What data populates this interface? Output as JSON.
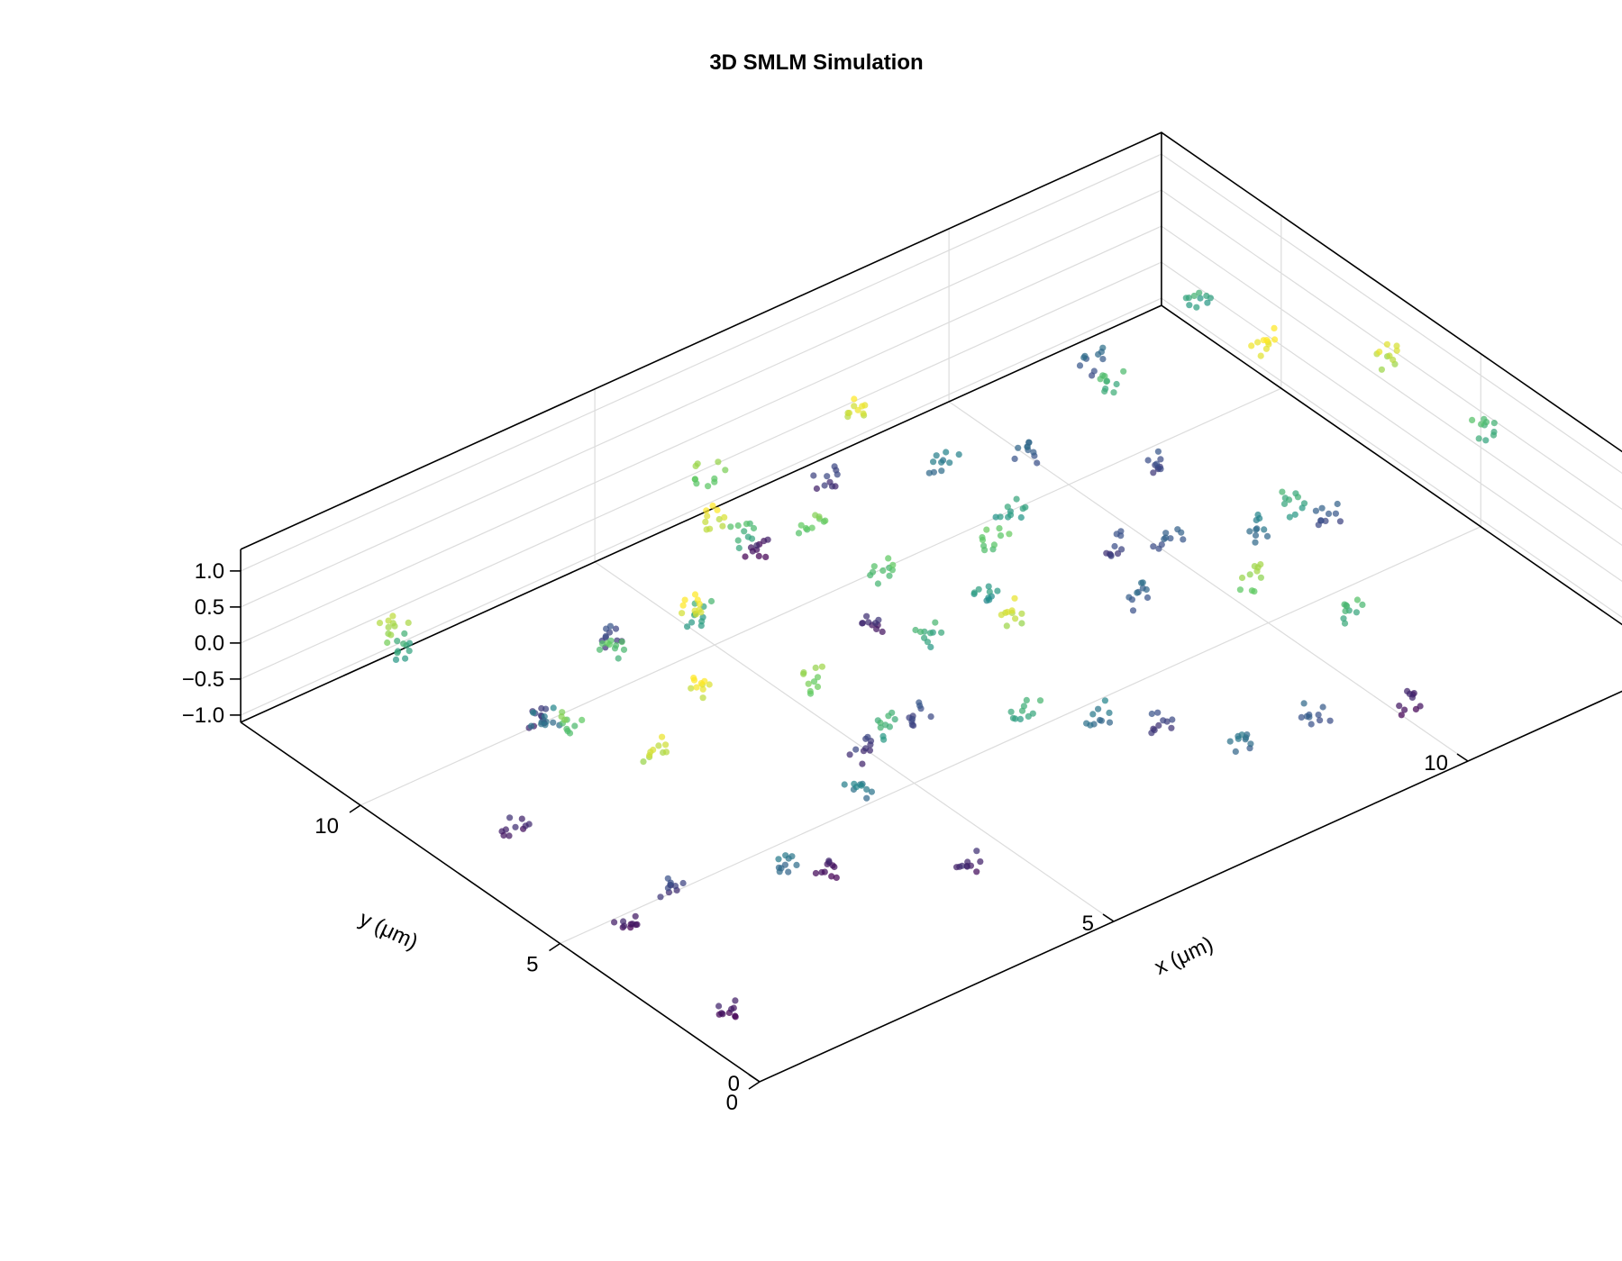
{
  "chart_data": {
    "type": "scatter",
    "title": "3D SMLM Simulation",
    "xlabel": "x (μm)",
    "ylabel": "y (μm)",
    "zlabel": "",
    "xlim": [
      0,
      13
    ],
    "ylim": [
      0,
      13
    ],
    "zlim": [
      -1.1,
      1.3
    ],
    "x_ticks": [
      0,
      5,
      10
    ],
    "y_ticks": [
      0,
      5,
      10
    ],
    "z_ticks": [
      -1.0,
      -0.5,
      0.0,
      0.5,
      1.0
    ],
    "x_tick_labels": [
      "0",
      "5",
      "10"
    ],
    "y_tick_labels": [
      "0",
      "5",
      "10"
    ],
    "z_tick_labels": [
      "−1.0",
      "−0.5",
      "0.0",
      "0.5",
      "1.0"
    ],
    "grid": true,
    "legend": "none",
    "colormap": [
      "#440154",
      "#3b528b",
      "#21918c",
      "#5ec962",
      "#fde725"
    ],
    "color_by": "z",
    "cluster_points_per_cluster": 10,
    "clusters": [
      {
        "x": 0.6,
        "y": 4.4,
        "z": -0.9
      },
      {
        "x": 0.4,
        "y": 1.6,
        "z": -0.9
      },
      {
        "x": 1.2,
        "y": 4.4,
        "z": -0.6
      },
      {
        "x": 1.5,
        "y": 5.2,
        "z": 0.8
      },
      {
        "x": 2.2,
        "y": 3.2,
        "z": -0.3
      },
      {
        "x": 2.6,
        "y": 6.1,
        "z": 0.9
      },
      {
        "x": 3.0,
        "y": 3.7,
        "z": -0.9
      },
      {
        "x": 3.6,
        "y": 4.0,
        "z": -0.2
      },
      {
        "x": 3.9,
        "y": 5.6,
        "z": 0.6
      },
      {
        "x": 4.2,
        "y": 2.2,
        "z": -0.8
      },
      {
        "x": 4.6,
        "y": 5.6,
        "z": -0.7
      },
      {
        "x": 4.3,
        "y": 4.5,
        "z": 0.2
      },
      {
        "x": 5.4,
        "y": 5.6,
        "z": -0.5
      },
      {
        "x": 5.8,
        "y": 6.1,
        "z": 0.2
      },
      {
        "x": 6.2,
        "y": 4.7,
        "z": 0.8
      },
      {
        "x": 5.7,
        "y": 3.4,
        "z": 0.2
      },
      {
        "x": 6.6,
        "y": 3.3,
        "z": -0.2
      },
      {
        "x": 7.4,
        "y": 3.1,
        "z": -0.6
      },
      {
        "x": 6.0,
        "y": 7.6,
        "z": 0.4
      },
      {
        "x": 7.3,
        "y": 7.1,
        "z": 0.4
      },
      {
        "x": 6.9,
        "y": 6.6,
        "z": 0.0
      },
      {
        "x": 8.1,
        "y": 8.1,
        "z": 0.1
      },
      {
        "x": 8.6,
        "y": 5.8,
        "z": -0.4
      },
      {
        "x": 9.2,
        "y": 7.4,
        "z": -0.6
      },
      {
        "x": 9.6,
        "y": 6.8,
        "z": -0.4
      },
      {
        "x": 10.3,
        "y": 5.8,
        "z": -0.2
      },
      {
        "x": 10.6,
        "y": 5.4,
        "z": 0.2
      },
      {
        "x": 11.3,
        "y": 5.8,
        "z": -0.5
      },
      {
        "x": 8.9,
        "y": 3.4,
        "z": 0.6
      },
      {
        "x": 8.7,
        "y": 1.5,
        "z": -0.4
      },
      {
        "x": 10.0,
        "y": 1.5,
        "z": -0.9
      },
      {
        "x": 9.6,
        "y": 2.3,
        "z": 0.3
      },
      {
        "x": 7.6,
        "y": 1.4,
        "z": -0.3
      },
      {
        "x": 2.8,
        "y": 8.6,
        "z": 0.4
      },
      {
        "x": 3.4,
        "y": 7.8,
        "z": 1.0
      },
      {
        "x": 4.1,
        "y": 8.8,
        "z": 0.2
      },
      {
        "x": 3.8,
        "y": 10.4,
        "z": -0.6
      },
      {
        "x": 4.8,
        "y": 9.6,
        "z": 0.9
      },
      {
        "x": 5.4,
        "y": 10.0,
        "z": 0.3
      },
      {
        "x": 5.9,
        "y": 9.2,
        "z": 0.5
      },
      {
        "x": 6.3,
        "y": 8.4,
        "z": -0.8
      },
      {
        "x": 5.6,
        "y": 11.2,
        "z": 0.6
      },
      {
        "x": 6.4,
        "y": 11.4,
        "z": -0.9
      },
      {
        "x": 7.6,
        "y": 11.8,
        "z": -0.7
      },
      {
        "x": 7.4,
        "y": 10.6,
        "z": 0.9
      },
      {
        "x": 8.4,
        "y": 10.3,
        "z": -0.2
      },
      {
        "x": 9.4,
        "y": 10.0,
        "z": -0.4
      },
      {
        "x": 10.4,
        "y": 9.6,
        "z": 0.3
      },
      {
        "x": 10.5,
        "y": 8.7,
        "z": -0.6
      },
      {
        "x": 11.6,
        "y": 7.9,
        "z": 1.0
      },
      {
        "x": 11.1,
        "y": 11.4,
        "z": -0.4
      },
      {
        "x": 12.3,
        "y": 10.8,
        "z": 0.2
      },
      {
        "x": 12.6,
        "y": 6.7,
        "z": 0.8
      },
      {
        "x": 13.0,
        "y": 4.9,
        "z": 0.3
      },
      {
        "x": 0.8,
        "y": 7.5,
        "z": -0.8
      },
      {
        "x": 1.4,
        "y": 7.3,
        "z": 0.5
      },
      {
        "x": 1.8,
        "y": 8.6,
        "z": -0.2
      },
      {
        "x": 2.2,
        "y": 9.6,
        "z": -0.7
      },
      {
        "x": 0.9,
        "y": 10.7,
        "z": 0.7
      },
      {
        "x": 1.2,
        "y": 11.0,
        "z": 0.2
      }
    ]
  }
}
